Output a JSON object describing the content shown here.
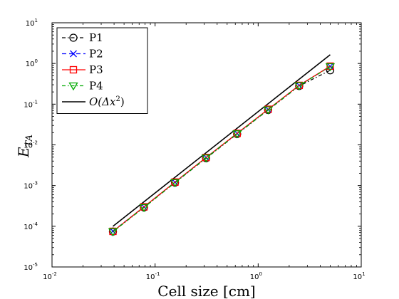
{
  "chart_data": {
    "type": "line",
    "xscale": "log",
    "yscale": "log",
    "xlim": [
      0.01,
      10
    ],
    "ylim": [
      1e-05,
      10
    ],
    "xlabel": "Cell size [cm]",
    "ylabel": "E_TA",
    "ylabel_main": "E",
    "ylabel_sub": "TA",
    "x_ticks": [
      {
        "base": "10",
        "exp": "-2",
        "value": 0.01
      },
      {
        "base": "10",
        "exp": "-1",
        "value": 0.1
      },
      {
        "base": "10",
        "exp": "0",
        "value": 1
      },
      {
        "base": "10",
        "exp": "1",
        "value": 10
      }
    ],
    "y_ticks": [
      {
        "base": "10",
        "exp": "-5",
        "value": 1e-05
      },
      {
        "base": "10",
        "exp": "-4",
        "value": 0.0001
      },
      {
        "base": "10",
        "exp": "-3",
        "value": 0.001
      },
      {
        "base": "10",
        "exp": "-2",
        "value": 0.01
      },
      {
        "base": "10",
        "exp": "-1",
        "value": 0.1
      },
      {
        "base": "10",
        "exp": "0",
        "value": 1
      },
      {
        "base": "10",
        "exp": "1",
        "value": 10
      }
    ],
    "x": [
      0.039,
      0.078,
      0.156,
      0.3125,
      0.625,
      1.25,
      2.5,
      5.0
    ],
    "series": [
      {
        "name": "P1",
        "color": "#000000",
        "dash": "5,3,1.5,3",
        "marker": "circle",
        "values": [
          7.4e-05,
          0.00029,
          0.00118,
          0.0047,
          0.0185,
          0.072,
          0.28,
          0.68
        ]
      },
      {
        "name": "P2",
        "color": "#0000ff",
        "dash": "6,4",
        "marker": "x",
        "values": [
          7.6e-05,
          0.0003,
          0.00121,
          0.0049,
          0.019,
          0.074,
          0.29,
          0.85
        ]
      },
      {
        "name": "P3",
        "color": "#ff0000",
        "dash": "",
        "marker": "square",
        "values": [
          7.5e-05,
          0.0003,
          0.00122,
          0.0049,
          0.0192,
          0.075,
          0.29,
          0.86
        ]
      },
      {
        "name": "P4",
        "color": "#00aa00",
        "dash": "5,3,1.5,3",
        "marker": "triangle-down",
        "values": [
          7.4e-05,
          0.00029,
          0.00119,
          0.0048,
          0.0188,
          0.073,
          0.285,
          0.84
        ]
      }
    ],
    "reference_line": {
      "name_prefix": "O(Δx",
      "name_exp": "2",
      "name_suffix": ")",
      "color": "#000000",
      "x": [
        0.039,
        5.0
      ],
      "values": [
        0.0001,
        1.64
      ]
    },
    "legend": {
      "position": "top-left"
    },
    "grid": false
  }
}
